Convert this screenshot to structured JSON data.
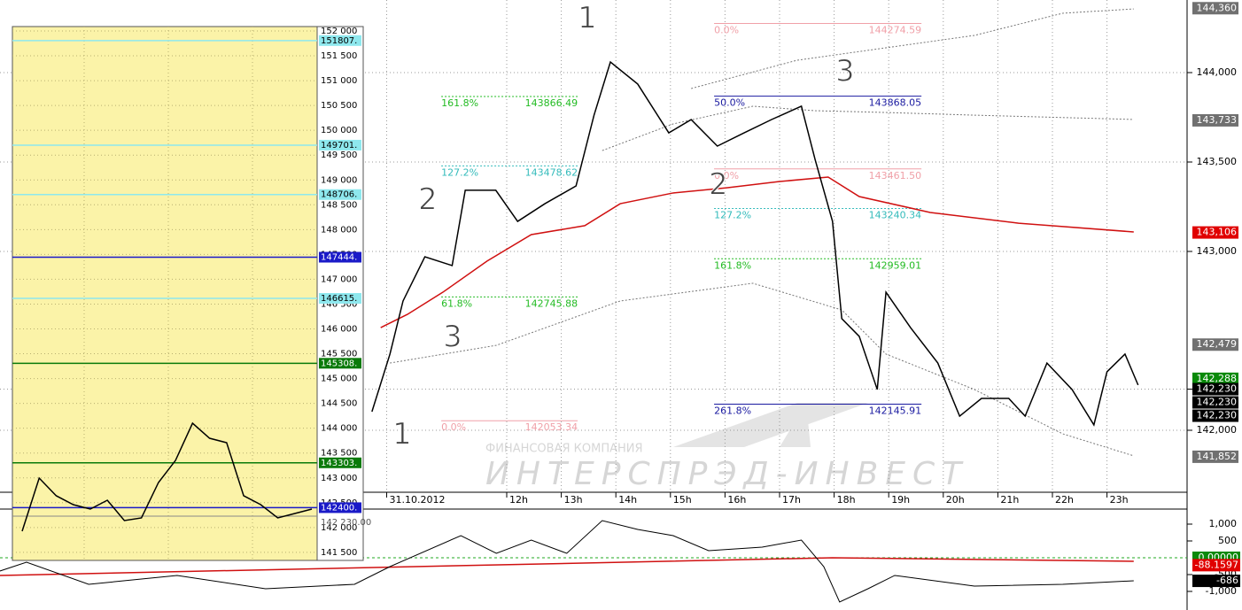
{
  "main_chart": {
    "price_axis": {
      "ticks": [
        {
          "value": 144000,
          "label": "144,000"
        },
        {
          "value": 143500,
          "label": "143,500"
        },
        {
          "value": 143000,
          "label": "143,000"
        },
        {
          "value": 142230,
          "label": "142,230"
        },
        {
          "value": 142000,
          "label": "142,000"
        }
      ]
    },
    "time_axis": {
      "ticks": [
        {
          "value": 9.8,
          "label": "31.10.2012"
        },
        {
          "value": 12,
          "label": "12h"
        },
        {
          "value": 13,
          "label": "13h"
        },
        {
          "value": 14,
          "label": "14h"
        },
        {
          "value": 15,
          "label": "15h"
        },
        {
          "value": 16,
          "label": "16h"
        },
        {
          "value": 17,
          "label": "17h"
        },
        {
          "value": 18,
          "label": "18h"
        },
        {
          "value": 19,
          "label": "19h"
        },
        {
          "value": 20,
          "label": "20h"
        },
        {
          "value": 21,
          "label": "21h"
        },
        {
          "value": 22,
          "label": "22h"
        },
        {
          "value": 23,
          "label": "23h"
        }
      ]
    },
    "price_tags": [
      {
        "value": 144360,
        "label": "144,360",
        "color": "#707070"
      },
      {
        "value": 143733,
        "label": "143,733",
        "color": "#707070"
      },
      {
        "value": 143106,
        "label": "143,106",
        "color": "#e00000"
      },
      {
        "value": 142479,
        "label": "142,479",
        "color": "#707070"
      },
      {
        "value": 142288,
        "label": "142,288",
        "color": "#0a8a0a"
      },
      {
        "value": 142230,
        "label": "142,230",
        "color": "#000000"
      },
      {
        "value": 142230,
        "label": "142,230",
        "color": "#000000"
      },
      {
        "value": 142230,
        "label": "142,230",
        "color": "#000000"
      },
      {
        "value": 141852,
        "label": "141,852",
        "color": "#707070"
      }
    ],
    "price": {
      "color": "#000000",
      "hours": [
        9.53,
        9.86,
        10.1,
        10.5,
        11.0,
        11.24,
        11.8,
        12.2,
        12.7,
        13.27,
        13.6,
        13.9,
        14.4,
        14.97,
        15.38,
        15.86,
        16.35,
        16.85,
        17.4,
        17.65,
        17.97,
        18.14,
        18.46,
        18.79,
        18.95,
        19.4,
        19.9,
        20.3,
        20.7,
        21.2,
        21.5,
        21.9,
        22.36,
        22.76,
        23.0,
        23.33,
        23.57
      ],
      "values": [
        142104,
        142426,
        142723,
        142970,
        142921,
        143342,
        143342,
        143168,
        143267,
        143366,
        143762,
        144059,
        143936,
        143663,
        143737,
        143589,
        143663,
        143737,
        143812,
        143515,
        143168,
        142624,
        142525,
        142228,
        142772,
        142574,
        142376,
        142079,
        142178,
        142178,
        142079,
        142376,
        142228,
        142030,
        142327,
        142426,
        142253
      ]
    },
    "moving_average": {
      "color": "#d01010",
      "hours": [
        9.69,
        10.18,
        10.83,
        11.64,
        12.45,
        13.43,
        14.08,
        15.05,
        16.03,
        17.0,
        17.89,
        18.46,
        19.76,
        21.38,
        23.49
      ],
      "values": [
        142574,
        142648,
        142772,
        142946,
        143094,
        143144,
        143267,
        143327,
        143356,
        143391,
        143416,
        143307,
        143218,
        143158,
        143109
      ]
    },
    "bands": [
      {
        "hours": [
          13.75,
          15.05,
          16.51,
          17.65,
          18.95,
          20.57,
          23.49
        ],
        "values": [
          143564,
          143713,
          143812,
          143787,
          143777,
          143762,
          143738
        ]
      },
      {
        "hours": [
          15.38,
          17.32,
          20.57,
          22.19,
          23.49
        ],
        "values": [
          143911,
          144069,
          144208,
          144332,
          144356
        ]
      },
      {
        "hours": [
          9.86,
          11.81,
          14.08,
          16.51,
          18.14,
          18.95,
          20.57,
          22.19,
          23.49
        ],
        "values": [
          142376,
          142475,
          142723,
          142822,
          142673,
          142426,
          142228,
          141980,
          141857
        ]
      }
    ],
    "fibonacci": [
      {
        "from": 10.8,
        "to": 13.3,
        "levels": [
          {
            "ratio": "161.8%",
            "price": 143866.49,
            "color": "#22bb22"
          },
          {
            "ratio": "127.2%",
            "price": 143478.62,
            "color": "#33bbbb"
          },
          {
            "ratio": "61.8%",
            "price": 142745.88,
            "color": "#22bb22"
          },
          {
            "ratio": "0.0%",
            "price": 142053.34,
            "color": "#f0a0a8"
          }
        ]
      },
      {
        "from": 15.8,
        "to": 19.6,
        "levels": [
          {
            "ratio": "0.0%",
            "price": 144274.59,
            "color": "#f0a0a8"
          },
          {
            "ratio": "50.0%",
            "price": 143868.05,
            "color": "#1a1aa0"
          },
          {
            "ratio": "0.0%",
            "price": {
              "value": 143461.5,
              "label": "143461.50"
            },
            "color": "#f0a0a8"
          },
          {
            "ratio": "127.2%",
            "price": 143240.34,
            "color": "#33bbbb"
          },
          {
            "ratio": "161.8%",
            "price": 142959.01,
            "color": "#22bb22"
          },
          {
            "ratio": "261.8%",
            "price": 142145.91,
            "color": "#1a1aa0"
          }
        ]
      }
    ],
    "waves": [
      "1",
      "2",
      "3",
      "2",
      "3",
      "1"
    ],
    "watermark": {
      "line1": "ФИНАНСОВАЯ КОМПАНИЯ",
      "line2": "ИНТЕРСПРЭД-ИНВЕСТ"
    }
  },
  "indicator": {
    "ticks": [
      {
        "value": 1000,
        "label": "1,000"
      },
      500,
      -500,
      {
        "value": -1000,
        "label": "-1,000"
      }
    ],
    "tags": [
      {
        "value": 0,
        "label": "0.00000",
        "color": "#0a8a0a"
      },
      {
        "value": -88.1597,
        "label": "-88.1597",
        "color": "#e00000"
      },
      {
        "value": -686,
        "label": "-686",
        "color": "#000000"
      }
    ],
    "line": {
      "color": "#000000",
      "hours": [
        2.71,
        3.2,
        4.34,
        5.96,
        7.58,
        9.21,
        9.86,
        11.16,
        11.81,
        12.45,
        13.1,
        13.75,
        14.4,
        15.05,
        15.7,
        16.68,
        17.4,
        17.81,
        18.1,
        18.62,
        19.11,
        20.57,
        22.19,
        23.49
      ],
      "values": [
        -395,
        -132,
        -789,
        -526,
        -921,
        -789,
        -263,
        658,
        132,
        526,
        132,
        1105,
        842,
        658,
        211,
        316,
        526,
        -263,
        -1316,
        -921,
        -526,
        -842,
        -789,
        -684
      ]
    },
    "signal": {
      "color": "#d01010",
      "hours": [
        2.71,
        17.97,
        23.49
      ],
      "values": [
        -526,
        0,
        -105
      ]
    }
  },
  "inset": {
    "ticks": [
      {
        "value": 152000,
        "label": "152 000"
      },
      {
        "value": 151500,
        "label": "151 500"
      },
      {
        "value": 151000,
        "label": "151 000"
      },
      {
        "value": 150500,
        "label": "150 500"
      },
      {
        "value": 150000,
        "label": "150 000"
      },
      {
        "value": 149500,
        "label": "149 500"
      },
      {
        "value": 149000,
        "label": "149 000"
      },
      {
        "value": 148500,
        "label": "148 500"
      },
      {
        "value": 148000,
        "label": "148 000"
      },
      {
        "value": 147500,
        "label": "147 500"
      },
      {
        "value": 147000,
        "label": "147 000"
      },
      {
        "value": 146500,
        "label": "146 500"
      },
      {
        "value": 146000,
        "label": "146 000"
      },
      {
        "value": 145500,
        "label": "145 500"
      },
      {
        "value": 145000,
        "label": "145 000"
      },
      {
        "value": 144500,
        "label": "144 500"
      },
      {
        "value": 144000,
        "label": "144 000"
      },
      {
        "value": 143500,
        "label": "143 500"
      },
      {
        "value": 143000,
        "label": "143 000"
      },
      {
        "value": 142500,
        "label": "142 500"
      },
      {
        "value": 142000,
        "label": "142 000"
      },
      {
        "value": 141500,
        "label": "141 500"
      }
    ],
    "levels": [
      {
        "value": 151807,
        "label": "151807.",
        "color": "#8ee8ee"
      },
      {
        "value": 149701,
        "label": "149701.",
        "color": "#8ee8ee"
      },
      {
        "value": 148706,
        "label": "148706.",
        "color": "#8ee8ee"
      },
      {
        "value": 147444,
        "label": "147444.",
        "color": "#1a1ac8"
      },
      {
        "value": 146615,
        "label": "146615.",
        "color": "#8ee8ee"
      },
      {
        "value": 145308,
        "label": "145308.",
        "color": "#0a7a0a"
      },
      {
        "value": 143303,
        "label": "143303.",
        "color": "#0a7a0a"
      },
      {
        "value": 142400,
        "label": "142400.",
        "color": "#1a1ac8"
      }
    ],
    "last": {
      "value": 142230,
      "label": "142 230.00"
    },
    "price": {
      "color": "#000000",
      "values": [
        141926,
        142996,
        142640,
        142461,
        142372,
        142550,
        142140,
        142194,
        142907,
        143352,
        144101,
        143798,
        143709,
        142640,
        142461,
        142194,
        142283,
        142372
      ]
    }
  }
}
